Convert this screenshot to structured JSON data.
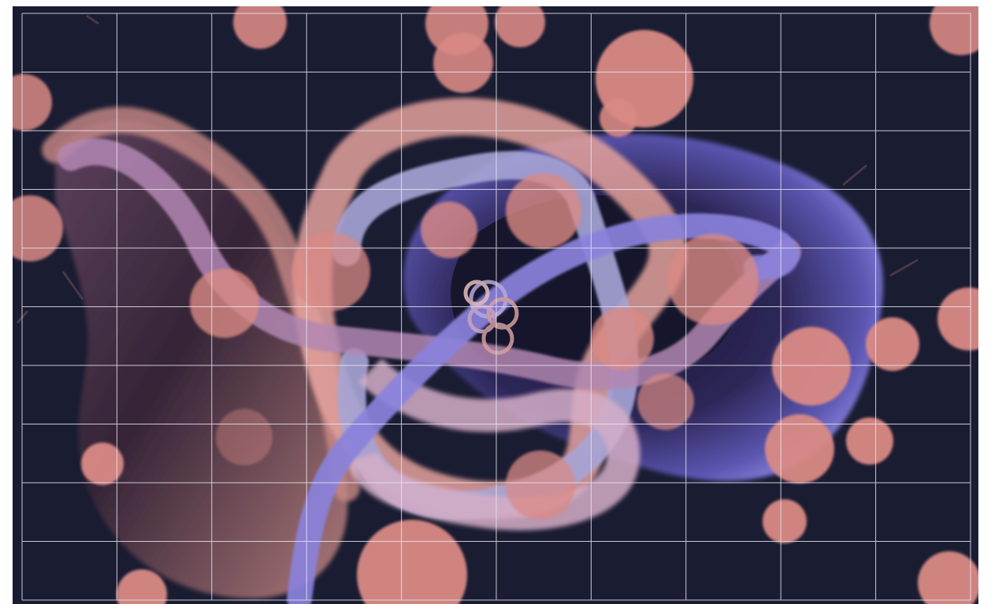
{
  "scene": {
    "description_free": true,
    "palette": {
      "background": "#1a1c32",
      "coral": "#d98a85",
      "coral_light": "#e8a59d",
      "lavender": "#a9a7d6",
      "periwinkle": "#8d84dc",
      "mauve": "#b58bb4",
      "deep_purple": "#2a2248",
      "grid_line": "#e9e6f0"
    },
    "grid": {
      "columns": 10,
      "rows": 10,
      "visible": true
    }
  }
}
